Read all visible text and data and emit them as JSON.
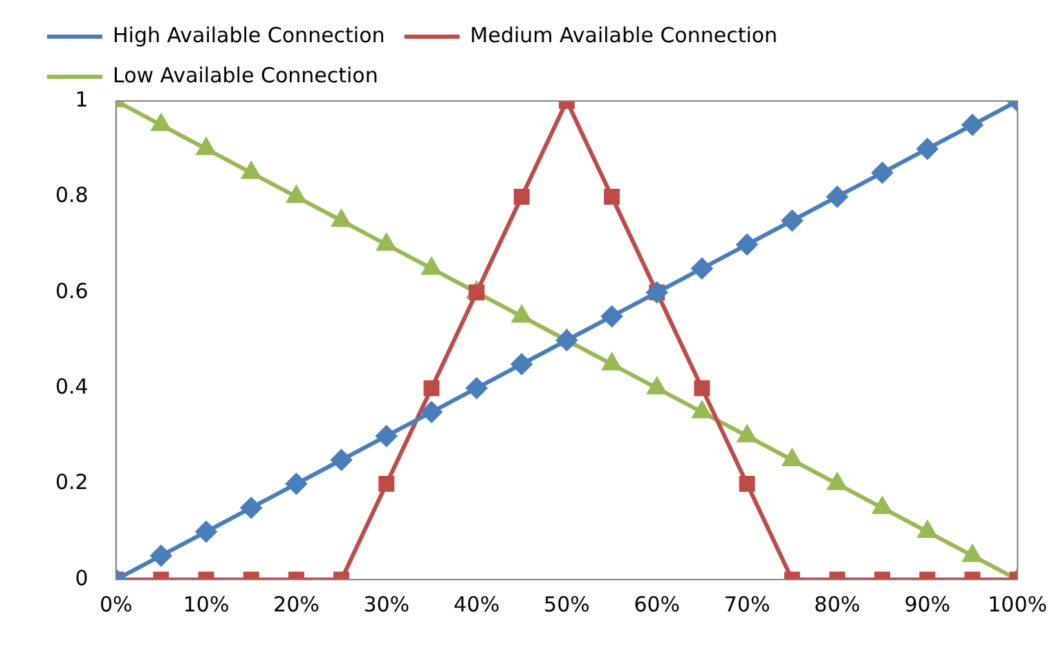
{
  "chart_data": {
    "type": "line",
    "x": [
      0,
      5,
      10,
      15,
      20,
      25,
      30,
      35,
      40,
      45,
      50,
      55,
      60,
      65,
      70,
      75,
      80,
      85,
      90,
      95,
      100
    ],
    "series": [
      {
        "name": "High Available Connection",
        "color": "#4a7ebb",
        "marker": "diamond",
        "values": [
          0,
          0.05,
          0.1,
          0.15,
          0.2,
          0.25,
          0.3,
          0.35,
          0.4,
          0.45,
          0.5,
          0.55,
          0.6,
          0.65,
          0.7,
          0.75,
          0.8,
          0.85,
          0.9,
          0.95,
          1
        ]
      },
      {
        "name": "Medium Available Connection",
        "color": "#be4b48",
        "marker": "square",
        "values": [
          0,
          0,
          0,
          0,
          0,
          0,
          0.2,
          0.4,
          0.6,
          0.8,
          1,
          0.8,
          0.6,
          0.4,
          0.2,
          0,
          0,
          0,
          0,
          0,
          0
        ]
      },
      {
        "name": "Low Available Connection",
        "color": "#98b954",
        "marker": "triangle",
        "values": [
          1,
          0.95,
          0.9,
          0.85,
          0.8,
          0.75,
          0.7,
          0.65,
          0.6,
          0.55,
          0.5,
          0.45,
          0.4,
          0.35,
          0.3,
          0.25,
          0.2,
          0.15,
          0.1,
          0.05,
          0
        ]
      }
    ],
    "xlim": [
      0,
      100
    ],
    "xticks": [
      {
        "value": 0,
        "label": "0%"
      },
      {
        "value": 10,
        "label": "10%"
      },
      {
        "value": 20,
        "label": "20%"
      },
      {
        "value": 30,
        "label": "30%"
      },
      {
        "value": 40,
        "label": "40%"
      },
      {
        "value": 50,
        "label": "50%"
      },
      {
        "value": 60,
        "label": "60%"
      },
      {
        "value": 70,
        "label": "70%"
      },
      {
        "value": 80,
        "label": "80%"
      },
      {
        "value": 90,
        "label": "90%"
      },
      {
        "value": 100,
        "label": "100%"
      }
    ],
    "ylim": [
      0,
      1
    ],
    "yticks": [
      0,
      0.2,
      0.4,
      0.6,
      0.8,
      1
    ],
    "grid": false,
    "legend": "top"
  }
}
